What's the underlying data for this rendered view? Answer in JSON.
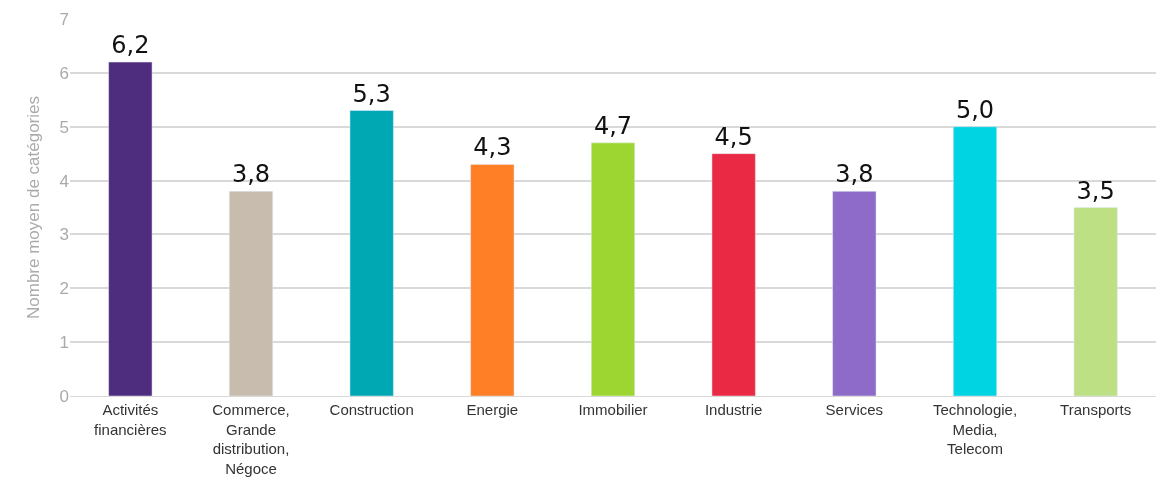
{
  "chart_data": {
    "type": "bar",
    "ylabel": "Nombre moyen de catégories",
    "categories": [
      "Activités financières",
      "Commerce, Grande distribution, Négoce",
      "Construction",
      "Energie",
      "Immobilier",
      "Industrie",
      "Services",
      "Technologie, Media, Telecom",
      "Transports"
    ],
    "values": [
      6.2,
      3.8,
      5.3,
      4.3,
      4.7,
      4.5,
      3.8,
      5.0,
      3.5
    ],
    "value_labels": [
      "6,2",
      "3,8",
      "5,3",
      "4,3",
      "4,7",
      "4,5",
      "3,8",
      "5,0",
      "3,5"
    ],
    "colors": [
      "#4e2d7f",
      "#c8bcae",
      "#00a8b4",
      "#ff7f27",
      "#9ed631",
      "#ea2a45",
      "#8e6bc9",
      "#00d4e3",
      "#bde085"
    ],
    "ylim": [
      0,
      7
    ],
    "yticks": [
      0,
      1,
      2,
      3,
      4,
      5,
      6,
      7
    ],
    "grid": "y"
  }
}
